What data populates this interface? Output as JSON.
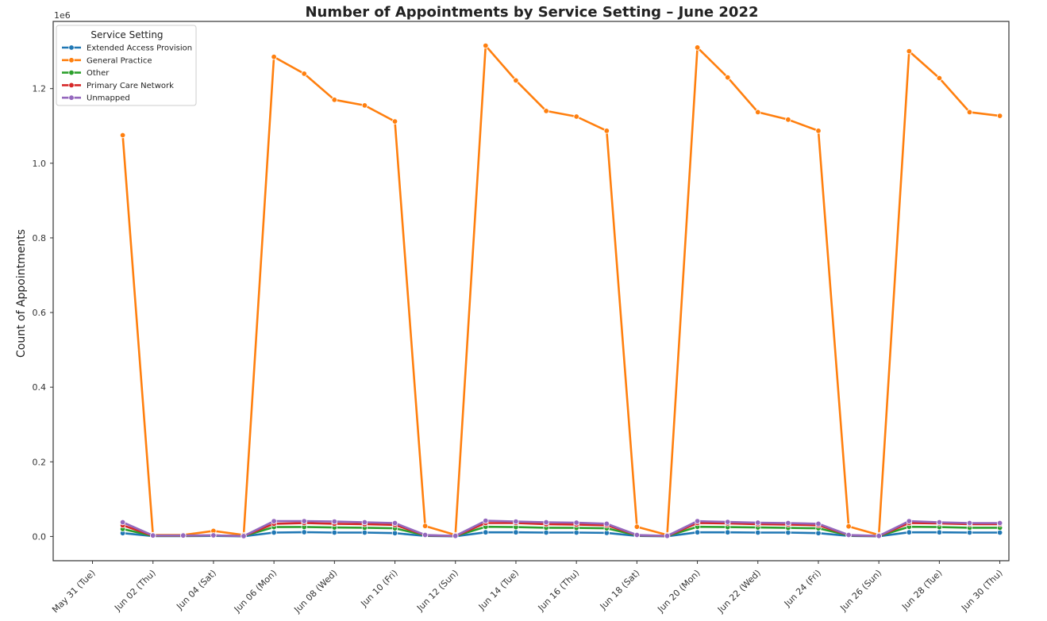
{
  "chart_data": {
    "type": "line",
    "title": "Number of Appointments by Service Setting – June 2022",
    "xlabel": "",
    "ylabel": "Count of Appointments",
    "y_exponent_label": "1e6",
    "xlim": [
      "2022-05-31",
      "2022-06-30"
    ],
    "ylim": [
      -65000,
      1380000
    ],
    "y_ticks": [
      0,
      200000,
      400000,
      600000,
      800000,
      1000000,
      1200000
    ],
    "y_tick_labels": [
      "0.0",
      "0.2",
      "0.4",
      "0.6",
      "0.8",
      "1.0",
      "1.2"
    ],
    "x_ticks": [
      "2022-05-31",
      "2022-06-02",
      "2022-06-04",
      "2022-06-06",
      "2022-06-08",
      "2022-06-10",
      "2022-06-12",
      "2022-06-14",
      "2022-06-16",
      "2022-06-18",
      "2022-06-20",
      "2022-06-22",
      "2022-06-24",
      "2022-06-26",
      "2022-06-28",
      "2022-06-30"
    ],
    "x_tick_labels": [
      "May 31 (Tue)",
      "Jun 02 (Thu)",
      "Jun 04 (Sat)",
      "Jun 06 (Mon)",
      "Jun 08 (Wed)",
      "Jun 10 (Fri)",
      "Jun 12 (Sun)",
      "Jun 14 (Tue)",
      "Jun 16 (Thu)",
      "Jun 18 (Sat)",
      "Jun 20 (Mon)",
      "Jun 22 (Wed)",
      "Jun 24 (Fri)",
      "Jun 26 (Sun)",
      "Jun 28 (Tue)",
      "Jun 30 (Thu)"
    ],
    "grid": false,
    "legend": {
      "title": "Service Setting",
      "position": "top-left"
    },
    "x": [
      "2022-06-01",
      "2022-06-02",
      "2022-06-03",
      "2022-06-04",
      "2022-06-05",
      "2022-06-06",
      "2022-06-07",
      "2022-06-08",
      "2022-06-09",
      "2022-06-10",
      "2022-06-11",
      "2022-06-12",
      "2022-06-13",
      "2022-06-14",
      "2022-06-15",
      "2022-06-16",
      "2022-06-17",
      "2022-06-18",
      "2022-06-19",
      "2022-06-20",
      "2022-06-21",
      "2022-06-22",
      "2022-06-23",
      "2022-06-24",
      "2022-06-25",
      "2022-06-26",
      "2022-06-27",
      "2022-06-28",
      "2022-06-29",
      "2022-06-30"
    ],
    "series": [
      {
        "name": "Extended Access Provision",
        "color": "#1f77b4",
        "values": [
          9000,
          1000,
          1000,
          1500,
          500,
          10500,
          11500,
          10500,
          10500,
          9000,
          1500,
          500,
          11000,
          11000,
          10500,
          10500,
          9500,
          1500,
          500,
          11000,
          11000,
          10500,
          10500,
          9000,
          1500,
          500,
          11000,
          11000,
          10500,
          10500
        ]
      },
      {
        "name": "General Practice",
        "color": "#ff7f0e",
        "values": [
          1075000,
          4000,
          4000,
          15000,
          4000,
          1285000,
          1240000,
          1170000,
          1155000,
          1112000,
          28000,
          4000,
          1315000,
          1222000,
          1140000,
          1125000,
          1087000,
          26000,
          4000,
          1310000,
          1230000,
          1137000,
          1117000,
          1087000,
          27000,
          4000,
          1300000,
          1228000,
          1137000,
          1127000
        ]
      },
      {
        "name": "Other",
        "color": "#2ca02c",
        "values": [
          20000,
          1500,
          1500,
          2500,
          1000,
          25000,
          25500,
          24000,
          23500,
          22000,
          3000,
          1000,
          26000,
          25000,
          23500,
          23000,
          22000,
          3000,
          1000,
          26000,
          25000,
          24000,
          23000,
          22000,
          3000,
          1000,
          26000,
          25000,
          23500,
          23500
        ]
      },
      {
        "name": "Primary Care Network",
        "color": "#d62728",
        "values": [
          30000,
          2000,
          2000,
          3000,
          1000,
          34000,
          36000,
          34000,
          33000,
          31000,
          3500,
          1000,
          36000,
          36000,
          33000,
          32000,
          30000,
          3500,
          1000,
          36000,
          35000,
          33000,
          32000,
          30000,
          3500,
          1000,
          36000,
          35000,
          33000,
          33000
        ]
      },
      {
        "name": "Unmapped",
        "color": "#9467bd",
        "values": [
          38000,
          2500,
          2500,
          3000,
          1000,
          41000,
          41000,
          40000,
          38000,
          36000,
          4000,
          1500,
          42000,
          40000,
          38000,
          37000,
          34000,
          4000,
          1500,
          41000,
          39000,
          37000,
          36000,
          34000,
          4000,
          1500,
          41000,
          38000,
          36000,
          36000
        ]
      }
    ]
  }
}
